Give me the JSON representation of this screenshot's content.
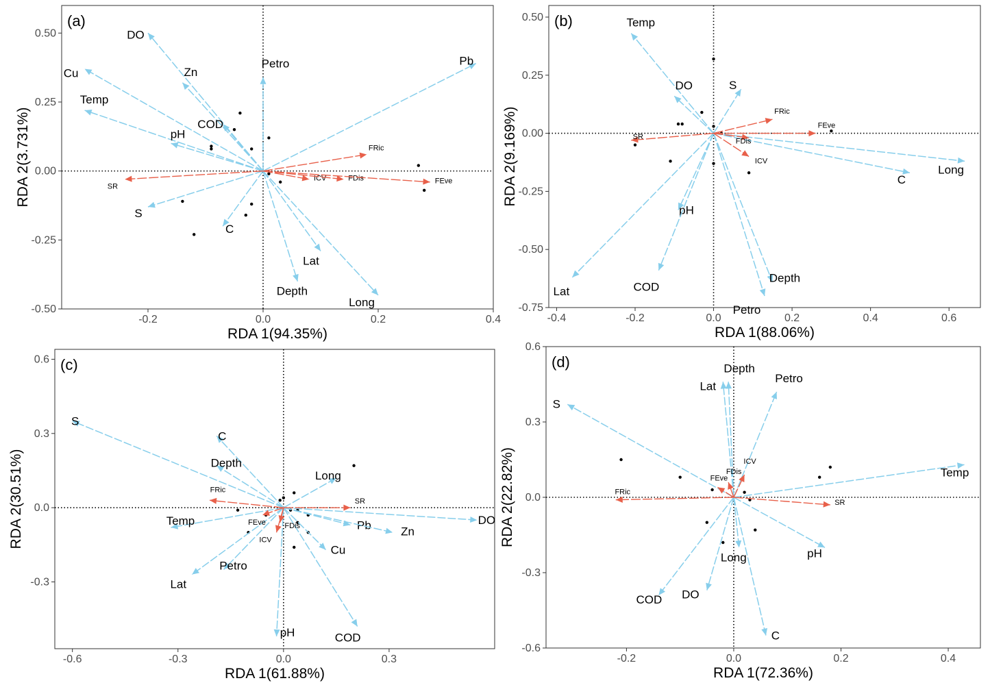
{
  "colors": {
    "env": "#87CEEB",
    "trait": "#E8604A",
    "point": "#000000",
    "frame": "#333333"
  },
  "chart_data": [
    {
      "type": "scatter",
      "panel": "(a)",
      "xlabel": "RDA 1(94.35%)",
      "ylabel": "RDA 2(3.731%)",
      "xlim": [
        -0.35,
        0.4
      ],
      "ylim": [
        -0.5,
        0.6
      ],
      "xticks": [
        -0.2,
        0.0,
        0.2,
        0.4
      ],
      "xtick_labels": [
        "-0.2",
        "0.0",
        "0.2",
        "0.4"
      ],
      "yticks": [
        -0.5,
        -0.25,
        0.0,
        0.25,
        0.5
      ],
      "ytick_labels": [
        "-0.50",
        "-0.25",
        "0.00",
        "0.25",
        "0.50"
      ],
      "env_vectors": [
        {
          "label": "DO",
          "x": -0.2,
          "y": 0.5
        },
        {
          "label": "Cu",
          "x": -0.31,
          "y": 0.37
        },
        {
          "label": "Zn",
          "x": -0.14,
          "y": 0.32
        },
        {
          "label": "Temp",
          "x": -0.31,
          "y": 0.22
        },
        {
          "label": "Petro",
          "x": 0.0,
          "y": 0.34
        },
        {
          "label": "Pb",
          "x": 0.37,
          "y": 0.39
        },
        {
          "label": "pH",
          "x": -0.16,
          "y": 0.1
        },
        {
          "label": "COD",
          "x": -0.07,
          "y": 0.17
        },
        {
          "label": "S",
          "x": -0.2,
          "y": -0.13
        },
        {
          "label": "C",
          "x": -0.07,
          "y": -0.2
        },
        {
          "label": "Lat",
          "x": 0.1,
          "y": -0.29
        },
        {
          "label": "Depth",
          "x": 0.06,
          "y": -0.4
        },
        {
          "label": "Long",
          "x": 0.2,
          "y": -0.45
        }
      ],
      "trait_vectors": [
        {
          "label": "FRic",
          "x": 0.18,
          "y": 0.06
        },
        {
          "label": "ICV",
          "x": 0.08,
          "y": -0.03
        },
        {
          "label": "FDis",
          "x": 0.14,
          "y": -0.03
        },
        {
          "label": "FEve",
          "x": 0.29,
          "y": -0.04
        },
        {
          "label": "SR",
          "x": -0.24,
          "y": -0.03
        }
      ],
      "points": [
        [
          -0.04,
          0.21
        ],
        [
          -0.05,
          0.15
        ],
        [
          -0.09,
          0.09
        ],
        [
          -0.09,
          0.08
        ],
        [
          -0.02,
          0.08
        ],
        [
          0.01,
          0.12
        ],
        [
          0.01,
          -0.01
        ],
        [
          0.03,
          -0.04
        ],
        [
          -0.14,
          -0.11
        ],
        [
          -0.12,
          -0.23
        ],
        [
          -0.02,
          -0.12
        ],
        [
          -0.03,
          -0.16
        ],
        [
          0.27,
          0.02
        ],
        [
          0.28,
          -0.07
        ]
      ]
    },
    {
      "type": "scatter",
      "panel": "(b)",
      "xlabel": "RDA 1(88.06%)",
      "ylabel": "RDA 2(9.169%)",
      "xlim": [
        -0.42,
        0.68
      ],
      "ylim": [
        -0.75,
        0.55
      ],
      "xticks": [
        -0.4,
        -0.2,
        0.0,
        0.2,
        0.4,
        0.6
      ],
      "xtick_labels": [
        "-0.4",
        "-0.2",
        "0.0",
        "0.2",
        "0.4",
        "0.6"
      ],
      "yticks": [
        -0.75,
        -0.5,
        -0.25,
        0.0,
        0.25,
        0.5
      ],
      "ytick_labels": [
        "-0.75",
        "-0.50",
        "-0.25",
        "0.00",
        "0.25",
        "0.50"
      ],
      "env_vectors": [
        {
          "label": "Temp",
          "x": -0.21,
          "y": 0.43
        },
        {
          "label": "DO",
          "x": -0.1,
          "y": 0.16
        },
        {
          "label": "S",
          "x": 0.07,
          "y": 0.19
        },
        {
          "label": "Long",
          "x": 0.64,
          "y": -0.12
        },
        {
          "label": "C",
          "x": 0.5,
          "y": -0.17
        },
        {
          "label": "pH",
          "x": -0.09,
          "y": -0.33
        },
        {
          "label": "Lat",
          "x": -0.36,
          "y": -0.62
        },
        {
          "label": "COD",
          "x": -0.14,
          "y": -0.59
        },
        {
          "label": "Depth",
          "x": 0.15,
          "y": -0.64
        },
        {
          "label": "Petro",
          "x": 0.13,
          "y": -0.7
        }
      ],
      "trait_vectors": [
        {
          "label": "FRic",
          "x": 0.15,
          "y": 0.06
        },
        {
          "label": "FEve",
          "x": 0.26,
          "y": 0.0
        },
        {
          "label": "FDis",
          "x": 0.09,
          "y": -0.02
        },
        {
          "label": "ICV",
          "x": 0.09,
          "y": -0.1
        },
        {
          "label": "SR",
          "x": -0.21,
          "y": -0.03
        }
      ],
      "points": [
        [
          0.0,
          0.32
        ],
        [
          -0.03,
          0.09
        ],
        [
          -0.08,
          0.04
        ],
        [
          -0.09,
          0.04
        ],
        [
          0.0,
          0.03
        ],
        [
          -0.2,
          -0.05
        ],
        [
          -0.11,
          -0.12
        ],
        [
          0.0,
          -0.13
        ],
        [
          0.09,
          -0.17
        ],
        [
          0.3,
          0.01
        ],
        [
          0.02,
          0.0
        ]
      ]
    },
    {
      "type": "scatter",
      "panel": "(c)",
      "xlabel": "RDA 1(61.88%)",
      "ylabel": "RDA 2(30.51%)",
      "xlim": [
        -0.65,
        0.6
      ],
      "ylim": [
        -0.57,
        0.64
      ],
      "xticks": [
        -0.6,
        -0.3,
        0.0,
        0.3
      ],
      "xtick_labels": [
        "-0.6",
        "-0.3",
        "0.0",
        "0.3"
      ],
      "yticks": [
        -0.3,
        0.0,
        0.3,
        0.6
      ],
      "ytick_labels": [
        "-0.3",
        "0.0",
        "0.3",
        "0.6"
      ],
      "env_vectors": [
        {
          "label": "S",
          "x": -0.6,
          "y": 0.35
        },
        {
          "label": "C",
          "x": -0.19,
          "y": 0.29
        },
        {
          "label": "Depth",
          "x": -0.19,
          "y": 0.17
        },
        {
          "label": "Long",
          "x": 0.15,
          "y": 0.12
        },
        {
          "label": "DO",
          "x": 0.55,
          "y": -0.05
        },
        {
          "label": "Temp",
          "x": -0.32,
          "y": -0.08
        },
        {
          "label": "Pb",
          "x": 0.19,
          "y": -0.07
        },
        {
          "label": "Zn",
          "x": 0.31,
          "y": -0.1
        },
        {
          "label": "Cu",
          "x": 0.12,
          "y": -0.17
        },
        {
          "label": "Petro",
          "x": -0.17,
          "y": -0.25
        },
        {
          "label": "Lat",
          "x": -0.26,
          "y": -0.27
        },
        {
          "label": "pH",
          "x": -0.02,
          "y": -0.52
        },
        {
          "label": "COD",
          "x": 0.21,
          "y": -0.48
        }
      ],
      "trait_vectors": [
        {
          "label": "FRic",
          "x": -0.21,
          "y": 0.03
        },
        {
          "label": "SR",
          "x": 0.19,
          "y": 0.0
        },
        {
          "label": "FEve",
          "x": -0.06,
          "y": -0.03
        },
        {
          "label": "FDis",
          "x": -0.01,
          "y": -0.06
        },
        {
          "label": "ICV",
          "x": -0.02,
          "y": -0.1
        }
      ],
      "points": [
        [
          0.2,
          0.17
        ],
        [
          0.03,
          0.06
        ],
        [
          0.0,
          0.04
        ],
        [
          -0.01,
          0.03
        ],
        [
          0.02,
          -0.01
        ],
        [
          0.04,
          -0.01
        ],
        [
          0.07,
          -0.03
        ],
        [
          0.04,
          -0.06
        ],
        [
          0.07,
          -0.1
        ],
        [
          -0.05,
          -0.03
        ],
        [
          -0.13,
          -0.01
        ],
        [
          -0.1,
          -0.1
        ],
        [
          0.03,
          -0.16
        ]
      ]
    },
    {
      "type": "scatter",
      "panel": "(d)",
      "xlabel": "RDA 1(72.36%)",
      "ylabel": "RDA 2(22.82%)",
      "xlim": [
        -0.35,
        0.46
      ],
      "ylim": [
        -0.6,
        0.6
      ],
      "xticks": [
        -0.2,
        0.0,
        0.2,
        0.4
      ],
      "xtick_labels": [
        "-0.2",
        "0.0",
        "0.2",
        "0.4"
      ],
      "yticks": [
        -0.6,
        -0.3,
        0.0,
        0.3,
        0.6
      ],
      "ytick_labels": [
        "-0.6",
        "-0.3",
        "0.0",
        "0.3",
        "0.6"
      ],
      "env_vectors": [
        {
          "label": "S",
          "x": -0.31,
          "y": 0.37
        },
        {
          "label": "Lat",
          "x": -0.02,
          "y": 0.46
        },
        {
          "label": "Depth",
          "x": -0.01,
          "y": 0.46
        },
        {
          "label": "Petro",
          "x": 0.08,
          "y": 0.42
        },
        {
          "label": "Temp",
          "x": 0.43,
          "y": 0.13
        },
        {
          "label": "pH",
          "x": 0.17,
          "y": -0.2
        },
        {
          "label": "Long",
          "x": 0.01,
          "y": -0.2
        },
        {
          "label": "COD",
          "x": -0.14,
          "y": -0.39
        },
        {
          "label": "DO",
          "x": -0.05,
          "y": -0.37
        },
        {
          "label": "C",
          "x": 0.06,
          "y": -0.55
        }
      ],
      "trait_vectors": [
        {
          "label": "FRic",
          "x": -0.22,
          "y": -0.01
        },
        {
          "label": "SR",
          "x": 0.18,
          "y": -0.03
        },
        {
          "label": "FDis",
          "x": -0.01,
          "y": 0.06
        },
        {
          "label": "ICV",
          "x": 0.02,
          "y": 0.09
        },
        {
          "label": "FEve",
          "x": -0.03,
          "y": 0.04
        }
      ],
      "points": [
        [
          -0.21,
          0.15
        ],
        [
          -0.1,
          0.08
        ],
        [
          -0.04,
          0.03
        ],
        [
          -0.05,
          -0.1
        ],
        [
          -0.02,
          -0.18
        ],
        [
          0.02,
          0.02
        ],
        [
          0.03,
          -0.01
        ],
        [
          0.04,
          -0.13
        ],
        [
          0.16,
          0.08
        ],
        [
          0.18,
          0.12
        ]
      ]
    }
  ]
}
